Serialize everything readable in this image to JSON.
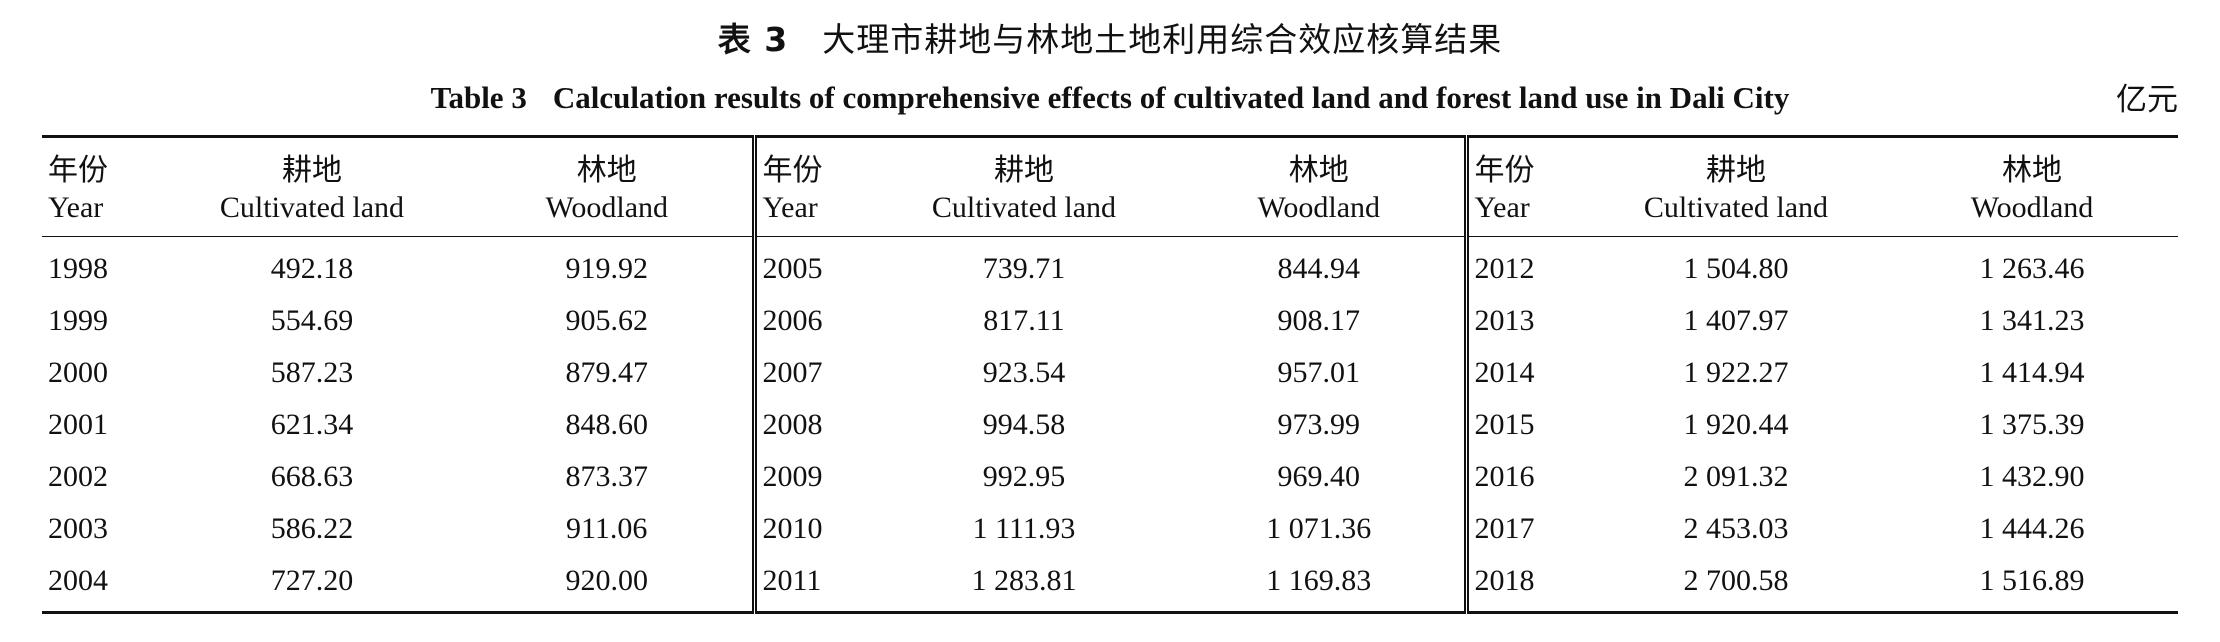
{
  "caption": {
    "cn_label": "表 3",
    "cn_text": "大理市耕地与林地土地利用综合效应核算结果",
    "en_label": "Table 3",
    "en_text": "Calculation results of comprehensive effects of cultivated land and forest land use in Dali City",
    "unit": "亿元"
  },
  "header": {
    "year_cn": "年份",
    "year_en": "Year",
    "cultivated_cn": "耕地",
    "cultivated_en": "Cultivated land",
    "woodland_cn": "林地",
    "woodland_en": "Woodland"
  },
  "rows": [
    [
      [
        "1998",
        "492.18",
        "919.92"
      ],
      [
        "2005",
        "739.71",
        "844.94"
      ],
      [
        "2012",
        "1 504.80",
        "1 263.46"
      ]
    ],
    [
      [
        "1999",
        "554.69",
        "905.62"
      ],
      [
        "2006",
        "817.11",
        "908.17"
      ],
      [
        "2013",
        "1 407.97",
        "1 341.23"
      ]
    ],
    [
      [
        "2000",
        "587.23",
        "879.47"
      ],
      [
        "2007",
        "923.54",
        "957.01"
      ],
      [
        "2014",
        "1 922.27",
        "1 414.94"
      ]
    ],
    [
      [
        "2001",
        "621.34",
        "848.60"
      ],
      [
        "2008",
        "994.58",
        "973.99"
      ],
      [
        "2015",
        "1 920.44",
        "1 375.39"
      ]
    ],
    [
      [
        "2002",
        "668.63",
        "873.37"
      ],
      [
        "2009",
        "992.95",
        "969.40"
      ],
      [
        "2016",
        "2 091.32",
        "1 432.90"
      ]
    ],
    [
      [
        "2003",
        "586.22",
        "911.06"
      ],
      [
        "2010",
        "1 111.93",
        "1 071.36"
      ],
      [
        "2017",
        "2 453.03",
        "1 444.26"
      ]
    ],
    [
      [
        "2004",
        "727.20",
        "920.00"
      ],
      [
        "2011",
        "1 283.81",
        "1 169.83"
      ],
      [
        "2018",
        "2 700.58",
        "1 516.89"
      ]
    ]
  ]
}
